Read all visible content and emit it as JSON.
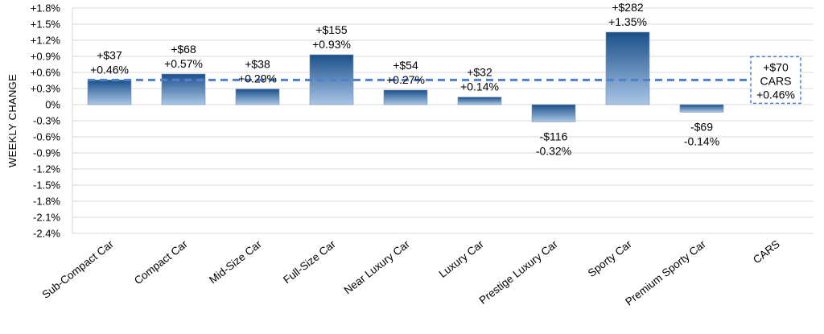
{
  "chart_data": {
    "type": "bar",
    "title": "",
    "xlabel": "",
    "ylabel": "WEEKLY CHANGE",
    "ylim": [
      -2.4,
      1.8
    ],
    "yticks": [
      1.8,
      1.5,
      1.2,
      0.9,
      0.6,
      0.3,
      0,
      -0.3,
      -0.6,
      -0.9,
      -1.2,
      -1.5,
      -1.8,
      -2.1,
      -2.4
    ],
    "ytick_labels": [
      "+1.8%",
      "+1.5%",
      "+1.2%",
      "+0.9%",
      "+0.6%",
      "+0.3%",
      "0%",
      "-0.3%",
      "-0.6%",
      "-0.9%",
      "-1.2%",
      "-1.5%",
      "-1.8%",
      "-2.1%",
      "-2.4%"
    ],
    "grid": true,
    "categories": [
      "Sub-Compact Car",
      "Compact Car",
      "Mid-Size Car",
      "Full-Size Car",
      "Near Luxury Car",
      "Luxury Car",
      "Prestige Luxury Car",
      "Sporty Car",
      "Premium Sporty Car",
      "CARS"
    ],
    "values": [
      0.46,
      0.57,
      0.29,
      0.93,
      0.27,
      0.14,
      -0.32,
      1.35,
      -0.14,
      null
    ],
    "dollar_labels": [
      "+$37",
      "+$68",
      "+$38",
      "+$155",
      "+$54",
      "+$32",
      "-$116",
      "+$282",
      "-$69",
      "+$70"
    ],
    "pct_labels": [
      "+0.46%",
      "+0.57%",
      "+0.29%",
      "+0.93%",
      "+0.27%",
      "+0.14%",
      "-0.32%",
      "+1.35%",
      "-0.14%",
      "+0.46%"
    ],
    "reference_line": {
      "value": 0.46,
      "label_lines": [
        "+$70",
        "CARS",
        "+0.46%"
      ]
    },
    "colors": {
      "bar_top": "#1a4f8a",
      "bar_bottom": "#a9c6e6",
      "reference": "#4f7fd1",
      "grid": "#d9d9d9"
    }
  }
}
